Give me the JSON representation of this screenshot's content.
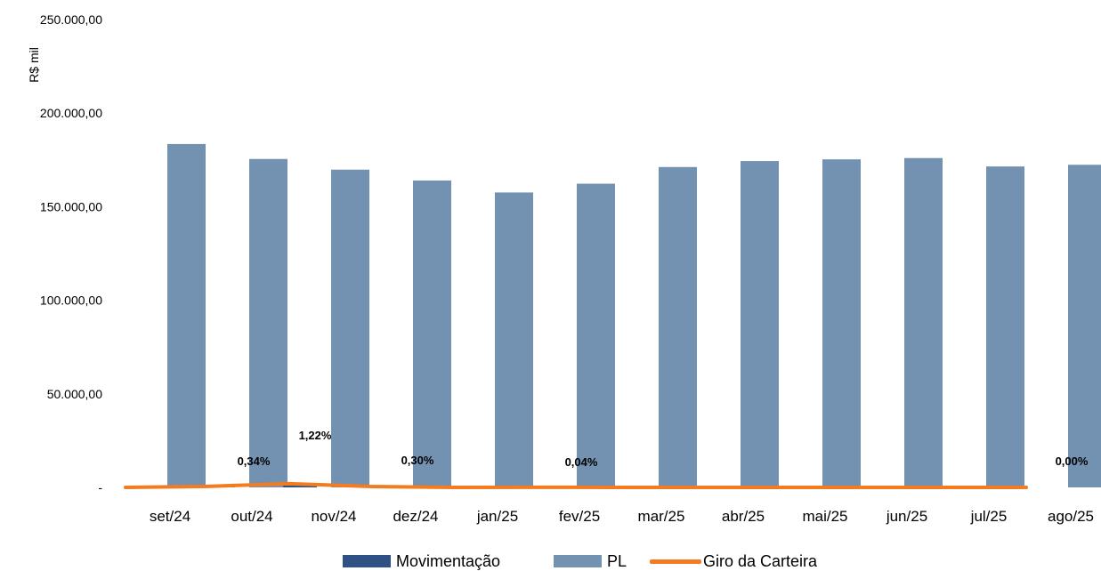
{
  "chart_data": {
    "type": "bar",
    "ylabel": "R$ mil",
    "yticks": [
      "250.000,00",
      "200.000,00",
      "150.000,00",
      "100.000,00",
      "50.000,00",
      "-"
    ],
    "ylim": [
      0,
      250000
    ],
    "categories": [
      "set/24",
      "out/24",
      "nov/24",
      "dez/24",
      "jan/25",
      "fev/25",
      "mar/25",
      "abr/25",
      "mai/25",
      "jun/25",
      "jul/25",
      "ago/25"
    ],
    "series": [
      {
        "name": "Movimentação",
        "type": "bar",
        "color": "#2e5283",
        "values": [
          0,
          1000,
          2000,
          500,
          0,
          0,
          0,
          0,
          0,
          0,
          0,
          0
        ]
      },
      {
        "name": "PL",
        "type": "bar",
        "color": "#7391b1",
        "values": [
          183500,
          175500,
          169800,
          164000,
          157600,
          162300,
          171200,
          174400,
          175300,
          176000,
          171500,
          172400
        ]
      },
      {
        "name": "Giro da Carteira",
        "type": "line",
        "color": "#f47c20",
        "unit": "%",
        "values": [
          0.0,
          0.34,
          1.22,
          0.3,
          0.0,
          0.04,
          0.0,
          0.0,
          0.0,
          0.0,
          0.0,
          0.0
        ],
        "labels": [
          "",
          "0,34%",
          "1,22%",
          "0,30%",
          "",
          "0,04%",
          "",
          "",
          "",
          "",
          "",
          "0,00%"
        ]
      }
    ],
    "legend": "bottom",
    "grid": false
  }
}
